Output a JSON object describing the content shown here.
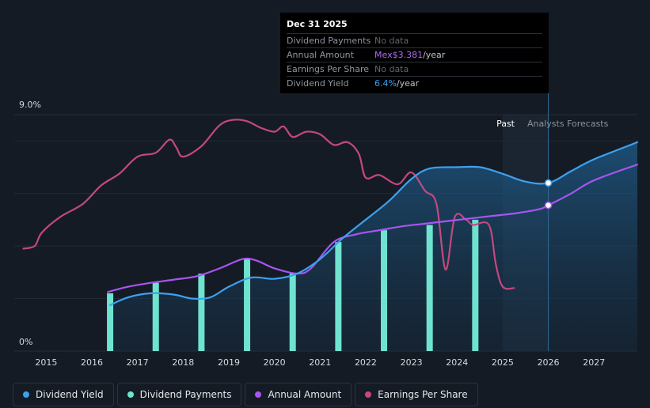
{
  "tooltip": {
    "date": "Dec 31 2025",
    "rows": [
      {
        "label": "Dividend Payments",
        "value": "No data",
        "unit": ""
      },
      {
        "label": "Annual Amount",
        "value": "Mex$3.381",
        "unit": "/year"
      },
      {
        "label": "Earnings Per Share",
        "value": "No data",
        "unit": ""
      },
      {
        "label": "Dividend Yield",
        "value": "6.4%",
        "unit": "/year"
      }
    ]
  },
  "regions": {
    "past": "Past",
    "forecast": "Analysts Forecasts"
  },
  "legend": [
    {
      "label": "Dividend Yield",
      "color": "#3ca1f0"
    },
    {
      "label": "Dividend Payments",
      "color": "#6fe2d0"
    },
    {
      "label": "Annual Amount",
      "color": "#a855f0"
    },
    {
      "label": "Earnings Per Share",
      "color": "#c4487f"
    }
  ],
  "chart_data": {
    "type": "line",
    "ylabel_top": "9.0%",
    "ylabel_bottom": "0%",
    "ylim": [
      0,
      9
    ],
    "xlim": [
      2014.3,
      2027.95
    ],
    "x_ticks": [
      "2015",
      "2016",
      "2017",
      "2018",
      "2019",
      "2020",
      "2021",
      "2022",
      "2023",
      "2024",
      "2025",
      "2026",
      "2027"
    ],
    "forecast_start": 2025.0,
    "today": 2026.0,
    "series": [
      {
        "name": "Dividend Yield",
        "color": "#3ca1f0",
        "points": [
          [
            2016.4,
            1.75
          ],
          [
            2016.8,
            2.05
          ],
          [
            2017.3,
            2.2
          ],
          [
            2017.8,
            2.15
          ],
          [
            2018.2,
            2.0
          ],
          [
            2018.6,
            2.05
          ],
          [
            2019.0,
            2.45
          ],
          [
            2019.5,
            2.8
          ],
          [
            2020.0,
            2.75
          ],
          [
            2020.5,
            2.95
          ],
          [
            2021.0,
            3.5
          ],
          [
            2021.5,
            4.3
          ],
          [
            2022.0,
            5.0
          ],
          [
            2022.5,
            5.7
          ],
          [
            2023.0,
            6.55
          ],
          [
            2023.4,
            6.95
          ],
          [
            2024.0,
            7.0
          ],
          [
            2024.5,
            7.0
          ],
          [
            2025.0,
            6.75
          ],
          [
            2025.5,
            6.45
          ],
          [
            2026.0,
            6.4
          ],
          [
            2026.5,
            6.85
          ],
          [
            2027.0,
            7.3
          ],
          [
            2027.95,
            7.95
          ]
        ]
      },
      {
        "name": "Annual Amount",
        "color": "#a855f0",
        "points": [
          [
            2016.35,
            2.25
          ],
          [
            2016.8,
            2.45
          ],
          [
            2017.3,
            2.6
          ],
          [
            2017.8,
            2.72
          ],
          [
            2018.3,
            2.85
          ],
          [
            2018.8,
            3.15
          ],
          [
            2019.3,
            3.5
          ],
          [
            2019.6,
            3.45
          ],
          [
            2020.0,
            3.15
          ],
          [
            2020.5,
            2.95
          ],
          [
            2020.8,
            3.15
          ],
          [
            2021.3,
            4.15
          ],
          [
            2021.8,
            4.45
          ],
          [
            2022.3,
            4.6
          ],
          [
            2022.8,
            4.75
          ],
          [
            2023.3,
            4.85
          ],
          [
            2023.8,
            4.95
          ],
          [
            2024.3,
            5.05
          ],
          [
            2024.8,
            5.15
          ],
          [
            2025.3,
            5.25
          ],
          [
            2025.8,
            5.4
          ],
          [
            2026.0,
            5.55
          ],
          [
            2026.5,
            6.0
          ],
          [
            2027.0,
            6.5
          ],
          [
            2027.95,
            7.1
          ]
        ]
      },
      {
        "name": "Earnings Per Share",
        "color": "#c4487f",
        "points": [
          [
            2014.5,
            3.9
          ],
          [
            2014.75,
            4.0
          ],
          [
            2014.9,
            4.5
          ],
          [
            2015.3,
            5.1
          ],
          [
            2015.8,
            5.6
          ],
          [
            2016.2,
            6.3
          ],
          [
            2016.6,
            6.75
          ],
          [
            2017.0,
            7.4
          ],
          [
            2017.4,
            7.55
          ],
          [
            2017.7,
            8.05
          ],
          [
            2017.85,
            7.75
          ],
          [
            2018.0,
            7.4
          ],
          [
            2018.4,
            7.8
          ],
          [
            2018.8,
            8.6
          ],
          [
            2019.1,
            8.8
          ],
          [
            2019.4,
            8.75
          ],
          [
            2019.7,
            8.5
          ],
          [
            2020.0,
            8.35
          ],
          [
            2020.2,
            8.55
          ],
          [
            2020.4,
            8.15
          ],
          [
            2020.7,
            8.35
          ],
          [
            2021.0,
            8.25
          ],
          [
            2021.3,
            7.85
          ],
          [
            2021.6,
            7.95
          ],
          [
            2021.85,
            7.5
          ],
          [
            2022.0,
            6.6
          ],
          [
            2022.3,
            6.7
          ],
          [
            2022.7,
            6.35
          ],
          [
            2023.0,
            6.8
          ],
          [
            2023.3,
            6.1
          ],
          [
            2023.55,
            5.6
          ],
          [
            2023.75,
            3.1
          ],
          [
            2023.95,
            5.1
          ],
          [
            2024.2,
            5.0
          ],
          [
            2024.35,
            4.8
          ],
          [
            2024.7,
            4.8
          ],
          [
            2024.85,
            3.3
          ],
          [
            2025.0,
            2.45
          ],
          [
            2025.25,
            2.4
          ]
        ]
      }
    ],
    "bars": {
      "name": "Dividend Payments",
      "color": "#6fe2d0",
      "x": [
        2016.4,
        2017.4,
        2018.4,
        2019.4,
        2020.4,
        2021.4,
        2022.4,
        2023.4,
        2024.4
      ],
      "values": [
        2.2,
        2.6,
        2.95,
        3.5,
        2.95,
        4.15,
        4.6,
        4.8,
        5.0
      ]
    }
  }
}
